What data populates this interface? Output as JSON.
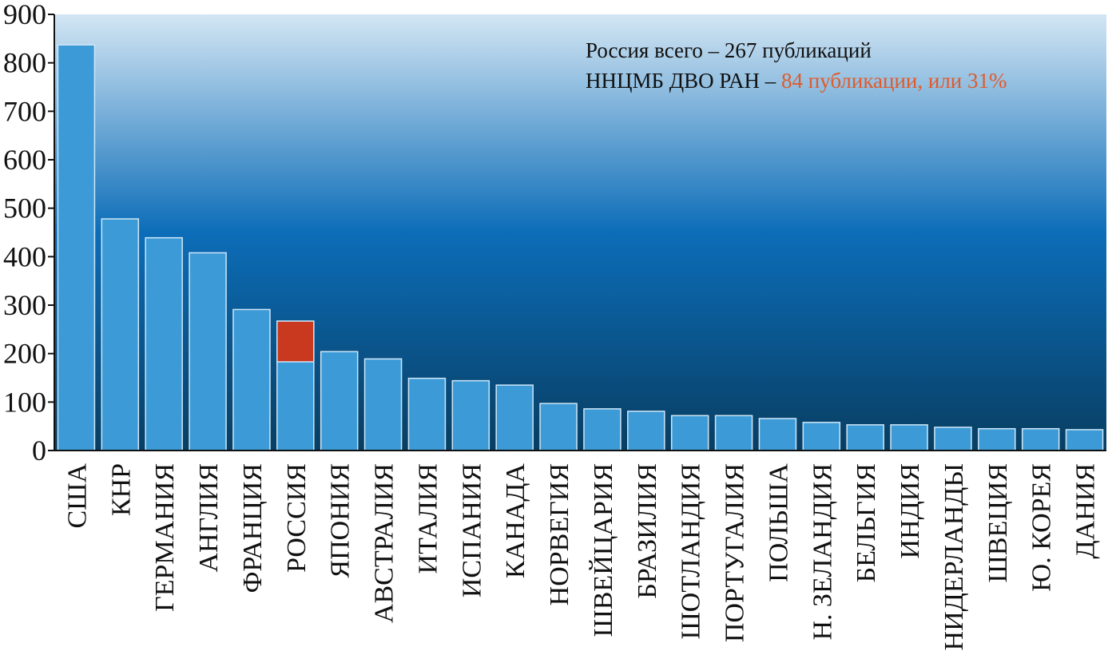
{
  "chart_data": {
    "type": "bar",
    "title": "",
    "xlabel": "",
    "ylabel": "",
    "ylim": [
      0,
      900
    ],
    "yticks": [
      0,
      100,
      200,
      300,
      400,
      500,
      600,
      700,
      800,
      900
    ],
    "grid": false,
    "categories": [
      "США",
      "КНР",
      "ГЕРМАНИЯ",
      "АНГЛИЯ",
      "ФРАНЦИЯ",
      "РОССИЯ",
      "ЯПОНИЯ",
      "АВСТРАЛИЯ",
      "ИТАЛИЯ",
      "ИСПАНИЯ",
      "КАНАДА",
      "НОРВЕГИЯ",
      "ШВЕЙЦАРИЯ",
      "БРАЗИЛИЯ",
      "ШОТЛАНДИЯ",
      "ПОРТУГАЛИЯ",
      "ПОЛЬША",
      "Н. ЗЕЛАНДИЯ",
      "БЕЛЬГИЯ",
      "ИНДИЯ",
      "НИДЕРЛАНДЫ",
      "ШВЕЦИЯ",
      "Ю. КОРЕЯ",
      "ДАНИЯ"
    ],
    "values": [
      837,
      478,
      439,
      408,
      291,
      267,
      204,
      189,
      149,
      144,
      135,
      97,
      86,
      81,
      72,
      72,
      66,
      58,
      53,
      53,
      48,
      45,
      45,
      43
    ],
    "highlight": {
      "category": "РОССИЯ",
      "value": 84,
      "color": "#c8391f"
    },
    "annotation": {
      "line1": "Россия всего – 267 публикаций",
      "line2_prefix": "ННЦМБ ДВО РАН – ",
      "line2_highlight": "84 публикации, или 31%"
    },
    "colors": {
      "bar": "#3c9bd6",
      "bar_edge": "#cfe6f7",
      "highlight": "#c8391f",
      "annotation_highlight": "#e05a2b",
      "bg_top": "#d3e6f4",
      "bg_mid": "#0c6db8",
      "bg_bottom": "#083e62"
    }
  }
}
